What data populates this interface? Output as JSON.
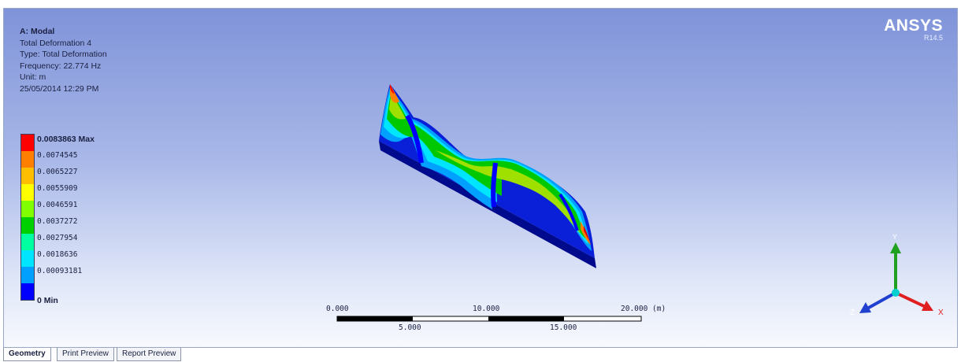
{
  "info": {
    "title": "A: Modal",
    "line1": "Total Deformation 4",
    "line2": "Type: Total Deformation",
    "line3": "Frequency: 22.774 Hz",
    "line4": "Unit: m",
    "line5": "25/05/2014 12:29 PM"
  },
  "legend": [
    {
      "label": "0.0083863 Max",
      "color": "#ff0000",
      "bold": true
    },
    {
      "label": "0.0074545",
      "color": "#ff7f00",
      "bold": false
    },
    {
      "label": "0.0065227",
      "color": "#ffbf00",
      "bold": false
    },
    {
      "label": "0.0055909",
      "color": "#ffff00",
      "bold": false
    },
    {
      "label": "0.0046591",
      "color": "#80ff00",
      "bold": false
    },
    {
      "label": "0.0037272",
      "color": "#00d000",
      "bold": false
    },
    {
      "label": "0.0027954",
      "color": "#00ffa0",
      "bold": false
    },
    {
      "label": "0.0018636",
      "color": "#00e5ff",
      "bold": false
    },
    {
      "label": "0.00093181",
      "color": "#00a0ff",
      "bold": false
    },
    {
      "label": "0 Min",
      "color": "#0000ff",
      "bold": true
    }
  ],
  "logo": {
    "name": "ANSYS",
    "version": "R14.5"
  },
  "scale": {
    "t0": "0.000",
    "t10": "10.000",
    "t20": "20.000 (m)",
    "t5": "5.000",
    "t15": "15.000"
  },
  "triad": {
    "x": "X",
    "y": "Y",
    "z": "Z",
    "x_color": "#e02020",
    "y_color": "#20a020",
    "z_color": "#2040d0"
  },
  "tabs": [
    {
      "label": "Geometry",
      "active": true
    },
    {
      "label": "Print Preview",
      "active": false
    },
    {
      "label": "Report Preview",
      "active": false
    }
  ]
}
